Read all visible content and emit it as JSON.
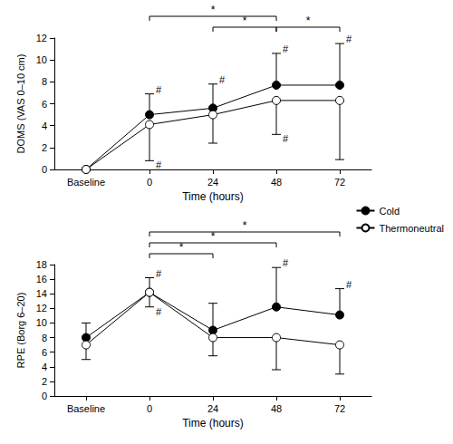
{
  "chart_data": [
    {
      "type": "line",
      "ylabel": "DOMS (VAS 0–10 cm)",
      "xlabel": "Time (hours)",
      "categories": [
        "Baseline",
        "0",
        "24",
        "48",
        "72"
      ],
      "ylim": [
        0,
        12
      ],
      "yticks": [
        0,
        2,
        4,
        6,
        8,
        10,
        12
      ],
      "grid": false,
      "legend": "right",
      "marker": "circle",
      "series": [
        {
          "name": "Cold",
          "color": "#000000",
          "values": [
            0,
            5.0,
            5.6,
            7.7,
            7.7
          ],
          "error_plus": [
            0,
            1.9,
            2.2,
            2.9,
            3.8
          ],
          "marks": [
            null,
            "#",
            "#",
            "#",
            "#"
          ]
        },
        {
          "name": "Thermoneutral",
          "color": "#ffffff",
          "values": [
            0,
            4.1,
            5.0,
            6.3,
            6.3
          ],
          "error_minus": [
            0,
            3.3,
            2.6,
            3.1,
            5.4
          ],
          "marks": [
            null,
            "#",
            null,
            "#",
            null
          ]
        }
      ],
      "brackets": [
        {
          "from": "0",
          "to": "48",
          "text": "*"
        },
        {
          "from": "24",
          "to": "48",
          "text": "*"
        },
        {
          "from": "48",
          "to": "72",
          "text": "*"
        }
      ]
    },
    {
      "type": "line",
      "ylabel": "RPE (Borg 6–20)",
      "xlabel": "Time (hours)",
      "categories": [
        "Baseline",
        "0",
        "24",
        "48",
        "72"
      ],
      "ylim": [
        0,
        18
      ],
      "yticks": [
        0,
        2,
        4,
        6,
        8,
        10,
        12,
        14,
        16,
        18
      ],
      "grid": false,
      "marker": "circle",
      "series": [
        {
          "name": "Cold",
          "color": "#000000",
          "values": [
            8,
            14.2,
            9,
            12.2,
            11.1
          ],
          "error_plus": [
            2,
            2,
            3.7,
            5.4,
            3.6
          ],
          "marks": [
            null,
            "#",
            null,
            "#",
            "#"
          ]
        },
        {
          "name": "Thermoneutral",
          "color": "#ffffff",
          "values": [
            7,
            14.2,
            8,
            8,
            7
          ],
          "error_minus": [
            2,
            2,
            2.5,
            4.4,
            4
          ],
          "marks": [
            null,
            "#",
            null,
            null,
            null
          ]
        }
      ],
      "brackets": [
        {
          "from": "0",
          "to": "24",
          "text": "*"
        },
        {
          "from": "0",
          "to": "48",
          "text": "*"
        },
        {
          "from": "0",
          "to": "72",
          "text": "*"
        }
      ]
    }
  ]
}
